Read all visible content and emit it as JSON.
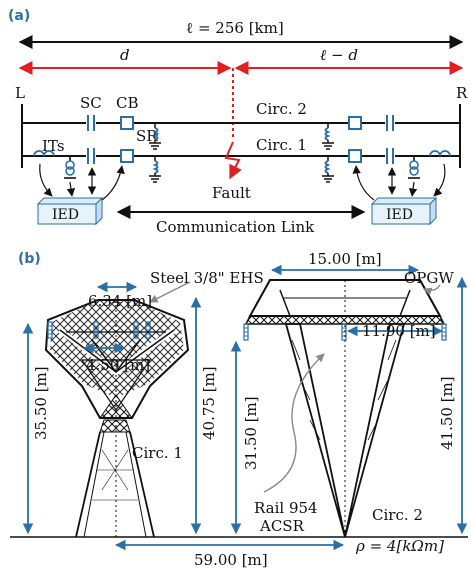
{
  "panel_a": {
    "tag": "(a)",
    "total_length": "ℓ = 256 [km]",
    "seg_d": "d",
    "seg_rest": "ℓ − d",
    "bus_left": "L",
    "bus_right": "R",
    "label_sc": "SC",
    "label_cb": "CB",
    "label_sr": "SR",
    "label_its": "ITs",
    "circ2": "Circ. 2",
    "circ1": "Circ. 1",
    "fault": "Fault",
    "ied_left": "IED",
    "ied_right": "IED",
    "comm_link": "Communication Link"
  },
  "panel_b": {
    "tag": "(b)",
    "steel": "Steel 3/8\" EHS",
    "opgw": "OPGW",
    "dim_634": "6.34 [m]",
    "dim_450": "4.50 [m]",
    "dim_1500": "15.00 [m]",
    "dim_1190": "11.90 [m]",
    "dim_3550": "35.50 [m]",
    "dim_4075": "40.75 [m]",
    "dim_3150": "31.50 [m]",
    "dim_4150": "41.50 [m]",
    "circ1": "Circ. 1",
    "circ2": "Circ. 2",
    "rail1": "Rail 954",
    "rail2": "ACSR",
    "dim_5900": "59.00 [m]",
    "rho": "ρ = 4[kΩm]"
  },
  "colors": {
    "blue": "#2a6fa5",
    "red": "#e02020",
    "gray": "#888888",
    "black": "#111111"
  }
}
